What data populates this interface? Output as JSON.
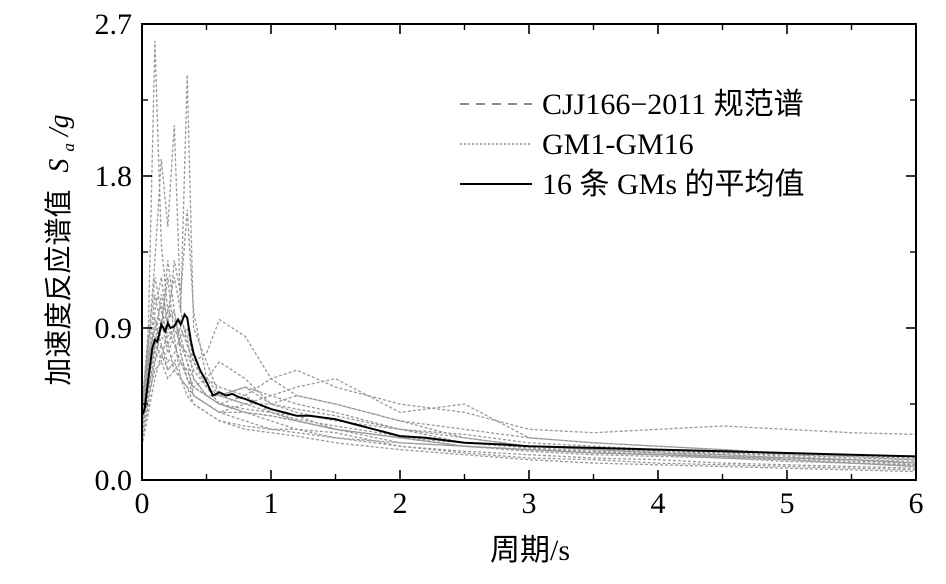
{
  "chart_data": {
    "type": "line",
    "xlabel": "周期/s",
    "ylabel": {
      "prefix": "加速度反应谱值",
      "symbol": "S",
      "subscript": "a",
      "suffix": "/g"
    },
    "xlim": [
      0,
      6
    ],
    "ylim": [
      0,
      2.7
    ],
    "x_ticks": [
      0,
      1,
      2,
      3,
      4,
      5,
      6
    ],
    "y_ticks": [
      0.0,
      0.9,
      1.8,
      2.7
    ],
    "x_tick_labels": [
      "0",
      "1",
      "2",
      "3",
      "4",
      "5",
      "6"
    ],
    "y_tick_labels": [
      "0.0",
      "0.9",
      "1.8",
      "2.7"
    ],
    "grid": false,
    "legend_position": "top-right",
    "legend": [
      {
        "label": "CJJ166−2011 规范谱",
        "style": "dashed",
        "color": "#8c8c8c"
      },
      {
        "label": "GM1-GM16",
        "style": "dotted",
        "color": "#8c8c8c"
      },
      {
        "label": "16 条  GMs 的平均值",
        "style": "solid",
        "color": "#000000"
      }
    ],
    "colors": {
      "records": "#999999",
      "mean": "#000000",
      "axis": "#000000"
    },
    "series": [
      {
        "name": "GM1-GM16",
        "records": [
          {
            "x": [
              0,
              0.05,
              0.1,
              0.15,
              0.2,
              0.25,
              0.3,
              0.35,
              0.4,
              0.5,
              0.6,
              0.8,
              1,
              1.2,
              1.5,
              2,
              2.5,
              3,
              3.5,
              4,
              4.5,
              5,
              5.5,
              6
            ],
            "y": [
              0.4,
              0.9,
              2.6,
              1.4,
              1.0,
              1.2,
              1.0,
              0.8,
              0.7,
              0.6,
              0.55,
              0.5,
              0.4,
              0.35,
              0.3,
              0.22,
              0.2,
              0.18,
              0.16,
              0.15,
              0.14,
              0.12,
              0.1,
              0.08
            ]
          },
          {
            "x": [
              0,
              0.05,
              0.1,
              0.15,
              0.2,
              0.25,
              0.3,
              0.35,
              0.4,
              0.5,
              0.6,
              0.8,
              1,
              1.2,
              1.5,
              2,
              2.5,
              3,
              3.5,
              4,
              4.5,
              5,
              5.5,
              6
            ],
            "y": [
              0.35,
              0.8,
              1.3,
              1.9,
              1.5,
              2.1,
              1.0,
              2.4,
              0.9,
              0.7,
              0.5,
              0.45,
              0.4,
              0.38,
              0.3,
              0.25,
              0.2,
              0.18,
              0.17,
              0.15,
              0.13,
              0.12,
              0.1,
              0.09
            ]
          },
          {
            "x": [
              0,
              0.05,
              0.1,
              0.15,
              0.2,
              0.25,
              0.3,
              0.35,
              0.4,
              0.5,
              0.6,
              0.8,
              1,
              1.2,
              1.5,
              2,
              2.5,
              3,
              3.5,
              4,
              4.5,
              5,
              5.5,
              6
            ],
            "y": [
              0.3,
              0.6,
              1.0,
              1.2,
              0.9,
              1.3,
              1.1,
              1.6,
              1.0,
              0.6,
              0.5,
              0.55,
              0.5,
              0.45,
              0.4,
              0.3,
              0.22,
              0.2,
              0.19,
              0.17,
              0.15,
              0.13,
              0.11,
              0.1
            ]
          },
          {
            "x": [
              0,
              0.05,
              0.1,
              0.15,
              0.2,
              0.25,
              0.3,
              0.35,
              0.4,
              0.5,
              0.6,
              0.8,
              1,
              1.2,
              1.5,
              2,
              2.5,
              3,
              3.5,
              4,
              4.5,
              5,
              5.5,
              6
            ],
            "y": [
              0.25,
              0.5,
              0.8,
              0.95,
              0.75,
              0.85,
              0.9,
              0.8,
              0.7,
              0.75,
              0.95,
              0.85,
              0.6,
              0.5,
              0.45,
              0.35,
              0.3,
              0.25,
              0.22,
              0.2,
              0.18,
              0.16,
              0.14,
              0.12
            ]
          },
          {
            "x": [
              0,
              0.05,
              0.1,
              0.15,
              0.2,
              0.25,
              0.3,
              0.35,
              0.4,
              0.5,
              0.6,
              0.8,
              1,
              1.2,
              1.5,
              2,
              2.5,
              3,
              3.5,
              4,
              4.5,
              5,
              5.5,
              6
            ],
            "y": [
              0.2,
              0.45,
              0.7,
              0.8,
              0.65,
              0.7,
              0.75,
              0.6,
              0.55,
              0.5,
              0.45,
              0.5,
              0.6,
              0.65,
              0.55,
              0.45,
              0.4,
              0.3,
              0.28,
              0.3,
              0.32,
              0.3,
              0.28,
              0.27
            ]
          },
          {
            "x": [
              0,
              0.05,
              0.1,
              0.15,
              0.2,
              0.25,
              0.3,
              0.35,
              0.4,
              0.5,
              0.6,
              0.8,
              1,
              1.2,
              1.5,
              2,
              2.5,
              3,
              3.5,
              4,
              4.5,
              5,
              5.5,
              6
            ],
            "y": [
              0.3,
              0.7,
              1.1,
              0.9,
              1.0,
              0.95,
              0.85,
              0.7,
              0.5,
              0.45,
              0.4,
              0.45,
              0.5,
              0.55,
              0.6,
              0.4,
              0.45,
              0.25,
              0.22,
              0.2,
              0.18,
              0.15,
              0.13,
              0.12
            ]
          },
          {
            "x": [
              0,
              0.05,
              0.1,
              0.15,
              0.2,
              0.25,
              0.3,
              0.35,
              0.4,
              0.5,
              0.6,
              0.8,
              1,
              1.2,
              1.5,
              2,
              2.5,
              3,
              3.5,
              4,
              4.5,
              5,
              5.5,
              6
            ],
            "y": [
              0.4,
              0.75,
              0.9,
              1.05,
              0.8,
              0.9,
              0.95,
              0.85,
              0.6,
              0.5,
              0.45,
              0.4,
              0.35,
              0.3,
              0.28,
              0.2,
              0.17,
              0.15,
              0.13,
              0.12,
              0.1,
              0.09,
              0.08,
              0.07
            ]
          },
          {
            "x": [
              0,
              0.05,
              0.1,
              0.15,
              0.2,
              0.25,
              0.3,
              0.35,
              0.4,
              0.5,
              0.6,
              0.8,
              1,
              1.2,
              1.5,
              2,
              2.5,
              3,
              3.5,
              4,
              4.5,
              5,
              5.5,
              6
            ],
            "y": [
              0.35,
              0.65,
              0.85,
              0.7,
              0.9,
              0.8,
              0.7,
              0.65,
              0.55,
              0.6,
              0.7,
              0.6,
              0.45,
              0.4,
              0.35,
              0.3,
              0.27,
              0.22,
              0.2,
              0.18,
              0.16,
              0.14,
              0.12,
              0.1
            ]
          },
          {
            "x": [
              0,
              0.05,
              0.1,
              0.15,
              0.2,
              0.25,
              0.3,
              0.35,
              0.4,
              0.5,
              0.6,
              0.8,
              1,
              1.2,
              1.5,
              2,
              2.5,
              3,
              3.5,
              4,
              4.5,
              5,
              5.5,
              6
            ],
            "y": [
              0.25,
              0.55,
              0.75,
              0.9,
              1.2,
              0.85,
              0.6,
              0.55,
              0.5,
              0.45,
              0.4,
              0.35,
              0.3,
              0.3,
              0.25,
              0.2,
              0.16,
              0.13,
              0.12,
              0.1,
              0.09,
              0.08,
              0.07,
              0.06
            ]
          },
          {
            "x": [
              0,
              0.05,
              0.1,
              0.15,
              0.2,
              0.25,
              0.3,
              0.35,
              0.4,
              0.5,
              0.6,
              0.8,
              1,
              1.2,
              1.5,
              2,
              2.5,
              3,
              3.5,
              4,
              4.5,
              5,
              5.5,
              6
            ],
            "y": [
              0.3,
              0.6,
              0.8,
              1.1,
              0.95,
              1.0,
              0.8,
              0.75,
              0.65,
              0.55,
              0.5,
              0.45,
              0.45,
              0.5,
              0.45,
              0.35,
              0.25,
              0.2,
              0.18,
              0.16,
              0.14,
              0.12,
              0.1,
              0.09
            ]
          },
          {
            "x": [
              0,
              0.05,
              0.1,
              0.15,
              0.2,
              0.25,
              0.3,
              0.35,
              0.4,
              0.5,
              0.6,
              0.8,
              1,
              1.2,
              1.5,
              2,
              2.5,
              3,
              3.5,
              4,
              4.5,
              5,
              5.5,
              6
            ],
            "y": [
              0.45,
              0.85,
              0.95,
              0.8,
              0.7,
              0.75,
              0.85,
              0.9,
              0.7,
              0.55,
              0.45,
              0.4,
              0.38,
              0.35,
              0.3,
              0.25,
              0.22,
              0.2,
              0.18,
              0.17,
              0.16,
              0.15,
              0.14,
              0.13
            ]
          },
          {
            "x": [
              0,
              0.05,
              0.1,
              0.15,
              0.2,
              0.25,
              0.3,
              0.35,
              0.4,
              0.5,
              0.6,
              0.8,
              1,
              1.2,
              1.5,
              2,
              2.5,
              3,
              3.5,
              4,
              4.5,
              5,
              5.5,
              6
            ],
            "y": [
              0.35,
              0.7,
              0.9,
              0.85,
              0.8,
              0.65,
              0.6,
              0.55,
              0.45,
              0.4,
              0.35,
              0.32,
              0.3,
              0.28,
              0.25,
              0.22,
              0.2,
              0.18,
              0.16,
              0.15,
              0.14,
              0.13,
              0.12,
              0.11
            ]
          },
          {
            "x": [
              0,
              0.05,
              0.1,
              0.15,
              0.2,
              0.25,
              0.3,
              0.35,
              0.4,
              0.5,
              0.6,
              0.8,
              1,
              1.2,
              1.5,
              2,
              2.5,
              3,
              3.5,
              4,
              4.5,
              5,
              5.5,
              6
            ],
            "y": [
              0.2,
              0.4,
              0.6,
              0.75,
              0.65,
              0.7,
              0.6,
              0.5,
              0.45,
              0.4,
              0.35,
              0.3,
              0.28,
              0.26,
              0.22,
              0.18,
              0.15,
              0.12,
              0.1,
              0.09,
              0.08,
              0.07,
              0.06,
              0.05
            ]
          },
          {
            "x": [
              0,
              0.05,
              0.1,
              0.15,
              0.2,
              0.25,
              0.3,
              0.35,
              0.4,
              0.5,
              0.6,
              0.8,
              1,
              1.2,
              1.5,
              2,
              2.5,
              3,
              3.5,
              4,
              4.5,
              5,
              5.5,
              6
            ],
            "y": [
              0.3,
              0.55,
              0.7,
              0.9,
              1.3,
              1.0,
              0.75,
              0.6,
              0.55,
              0.5,
              0.5,
              0.55,
              0.45,
              0.42,
              0.38,
              0.3,
              0.25,
              0.2,
              0.18,
              0.16,
              0.15,
              0.13,
              0.12,
              0.1
            ]
          },
          {
            "x": [
              0,
              0.05,
              0.1,
              0.15,
              0.2,
              0.25,
              0.3,
              0.35,
              0.4,
              0.5,
              0.6,
              0.8,
              1,
              1.2,
              1.5,
              2,
              2.5,
              3,
              3.5,
              4,
              4.5,
              5,
              5.5,
              6
            ],
            "y": [
              0.4,
              0.8,
              1.2,
              1.0,
              0.85,
              0.9,
              0.8,
              0.7,
              0.6,
              0.5,
              0.45,
              0.42,
              0.4,
              0.36,
              0.32,
              0.26,
              0.22,
              0.19,
              0.17,
              0.15,
              0.13,
              0.12,
              0.1,
              0.09
            ]
          },
          {
            "x": [
              0,
              0.05,
              0.1,
              0.15,
              0.2,
              0.25,
              0.3,
              0.35,
              0.4,
              0.5,
              0.6,
              0.8,
              1,
              1.2,
              1.5,
              2,
              2.5,
              3,
              3.5,
              4,
              4.5,
              5,
              5.5,
              6
            ],
            "y": [
              0.25,
              0.5,
              0.65,
              0.7,
              0.6,
              0.65,
              0.7,
              0.6,
              0.5,
              0.45,
              0.4,
              0.4,
              0.38,
              0.35,
              0.3,
              0.25,
              0.2,
              0.17,
              0.15,
              0.14,
              0.13,
              0.11,
              0.1,
              0.08
            ]
          }
        ]
      },
      {
        "name": "16 条  GMs 的平均值",
        "x": [
          0,
          0.02,
          0.05,
          0.08,
          0.1,
          0.12,
          0.15,
          0.18,
          0.2,
          0.22,
          0.25,
          0.28,
          0.3,
          0.33,
          0.35,
          0.38,
          0.4,
          0.45,
          0.5,
          0.55,
          0.6,
          0.65,
          0.7,
          0.75,
          0.8,
          0.9,
          1.0,
          1.1,
          1.2,
          1.3,
          1.4,
          1.5,
          1.6,
          1.8,
          2.0,
          2.2,
          2.5,
          2.8,
          3.0,
          3.5,
          4.0,
          4.5,
          5.0,
          5.5,
          6.0
        ],
        "y": [
          0.38,
          0.42,
          0.6,
          0.78,
          0.83,
          0.82,
          0.92,
          0.88,
          0.93,
          0.9,
          0.91,
          0.95,
          0.92,
          0.98,
          0.96,
          0.82,
          0.75,
          0.65,
          0.58,
          0.5,
          0.52,
          0.5,
          0.51,
          0.49,
          0.48,
          0.45,
          0.42,
          0.4,
          0.38,
          0.38,
          0.37,
          0.36,
          0.34,
          0.3,
          0.26,
          0.25,
          0.22,
          0.21,
          0.2,
          0.19,
          0.18,
          0.17,
          0.16,
          0.15,
          0.14
        ]
      }
    ]
  }
}
